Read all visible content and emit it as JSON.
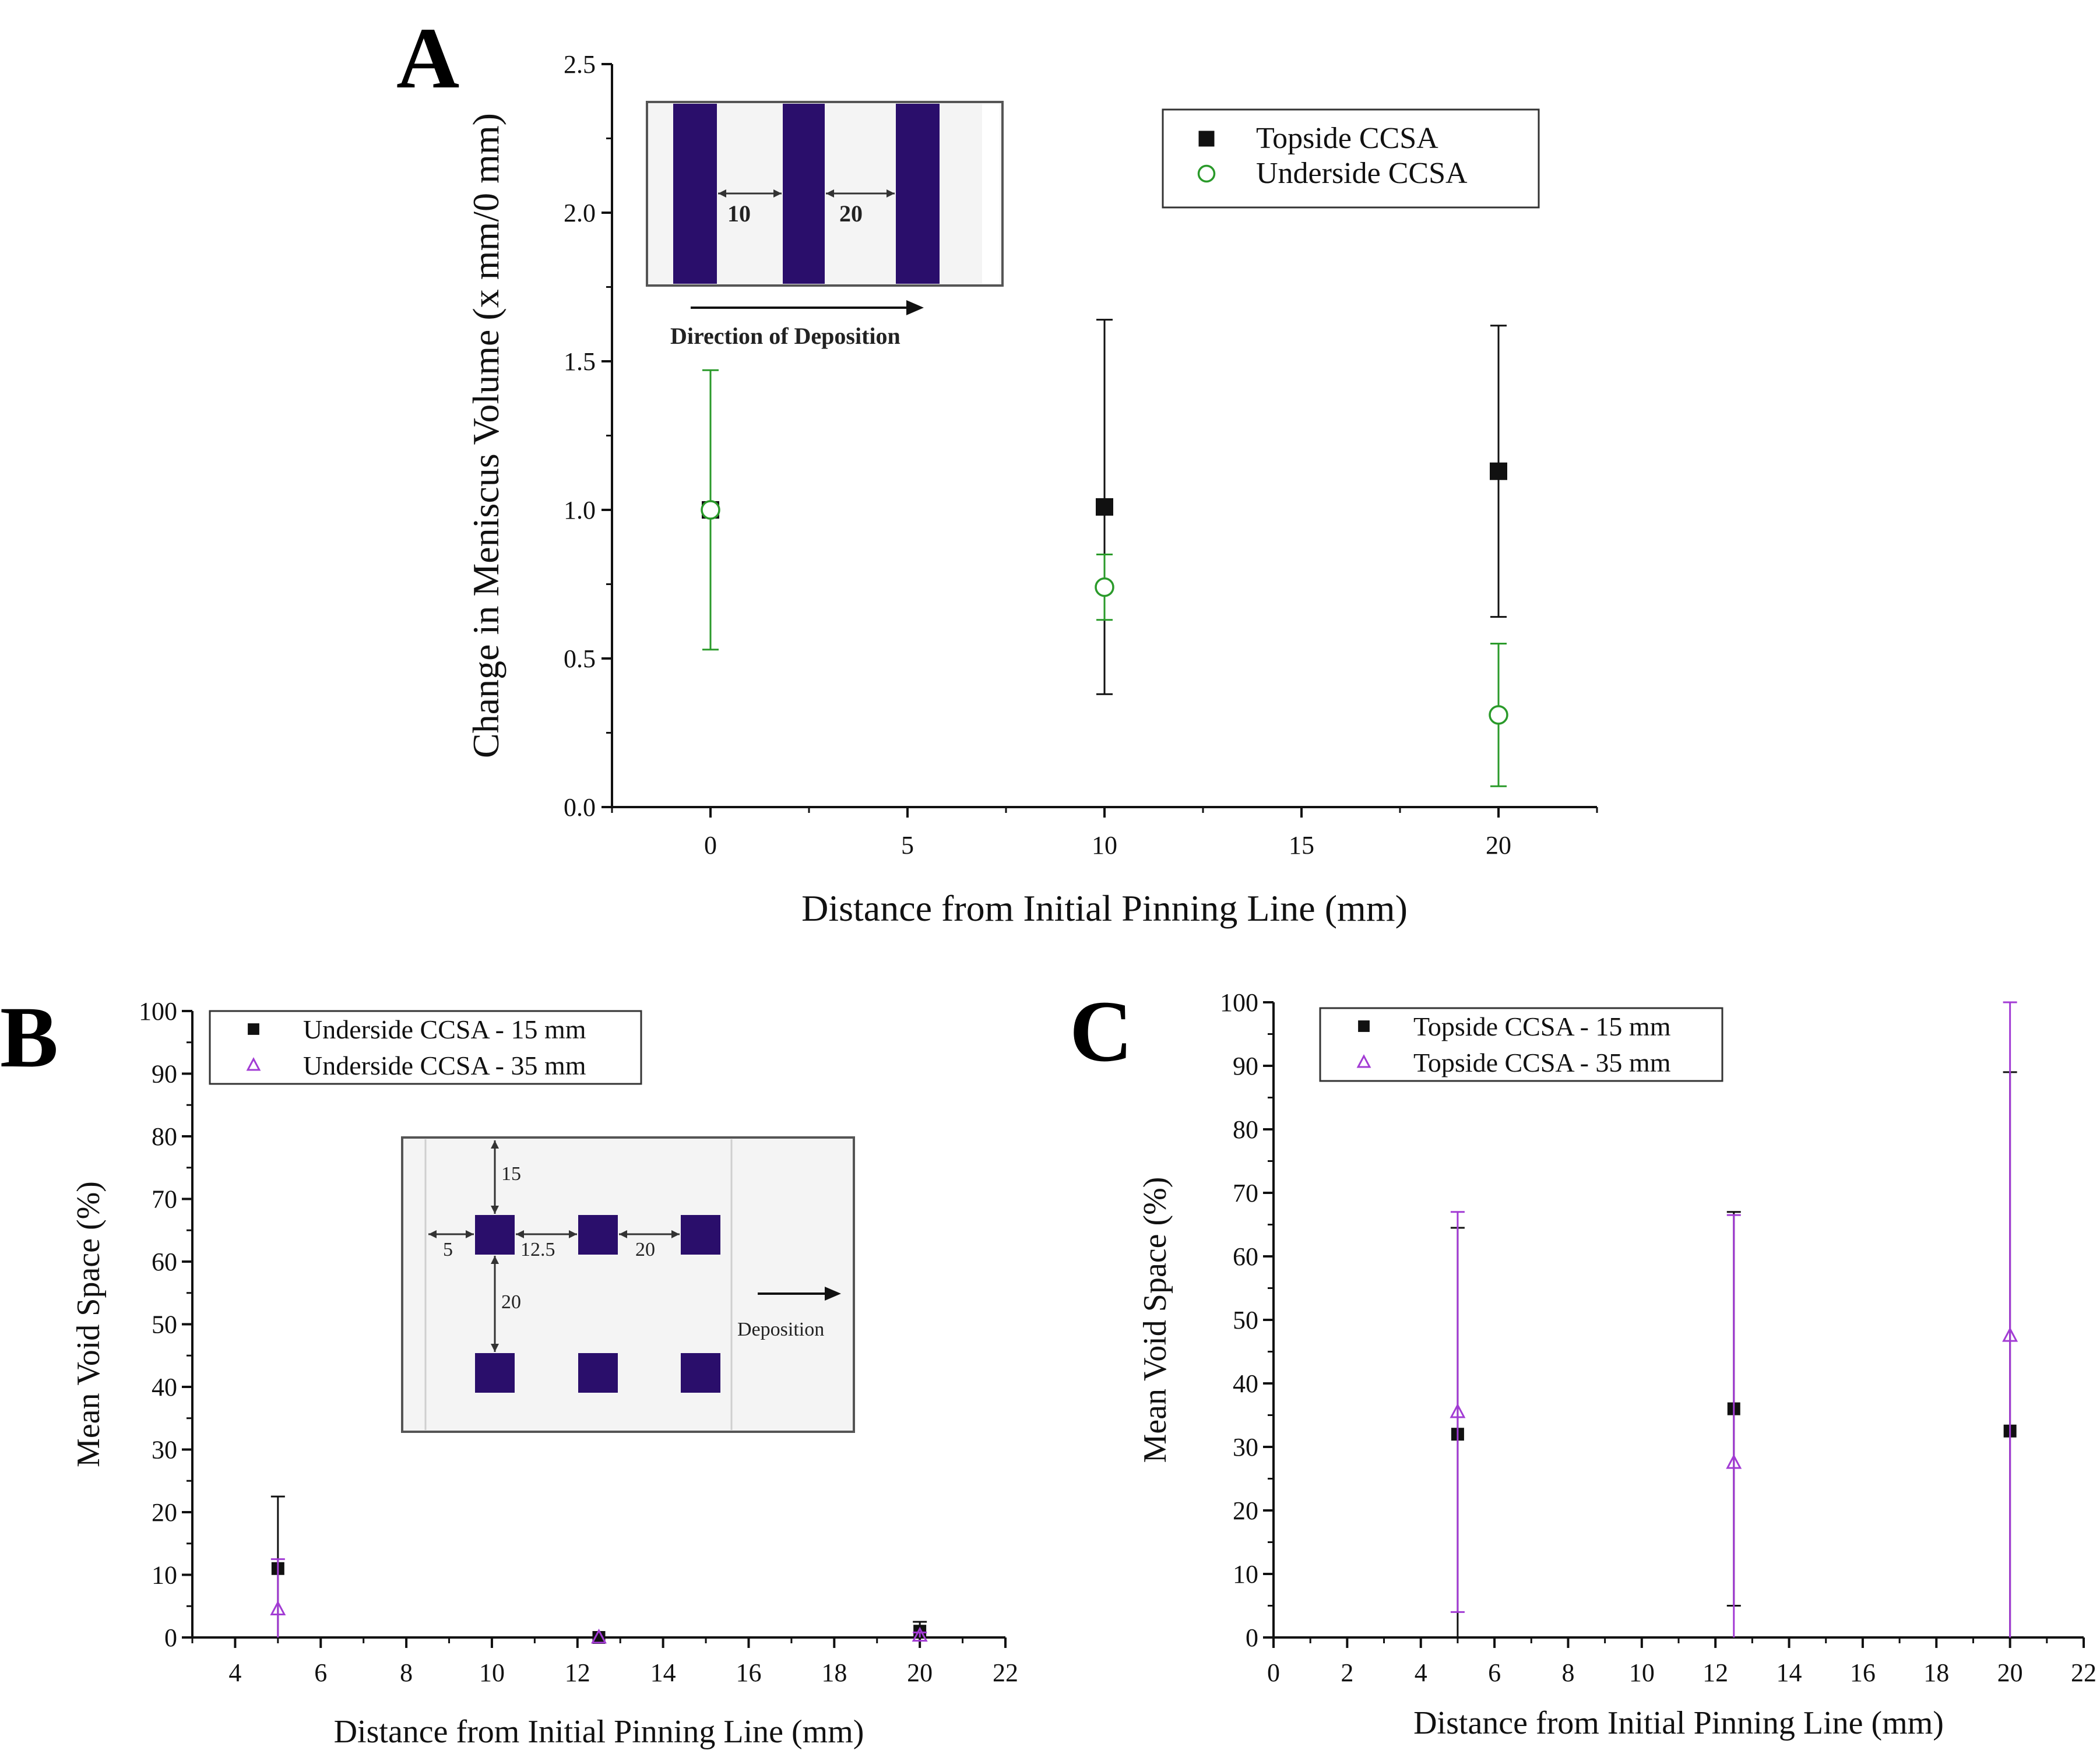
{
  "colors": {
    "black": "#111111",
    "green": "#2a9a2a",
    "purple": "#a23bd4",
    "inset_fill": "#2a0e6b"
  },
  "chart_data": [
    {
      "id": "A",
      "type": "scatter",
      "panel_label": "A",
      "title": "",
      "xlabel": "Distance from Initial Pinning Line (mm)",
      "ylabel": "Change in Meniscus Volume (x mm/0 mm)",
      "xlim": [
        -2.5,
        22.5
      ],
      "ylim": [
        0,
        2.5
      ],
      "xticks": [
        0,
        5,
        10,
        15,
        20
      ],
      "yticks": [
        "0.0",
        "0.5",
        "1.0",
        "1.5",
        "2.0",
        "2.5"
      ],
      "legend_position": "top-right",
      "series": [
        {
          "name": "Topside CCSA",
          "marker": "square",
          "color": "#111111",
          "x": [
            0,
            10,
            20
          ],
          "y": [
            1.0,
            1.01,
            1.13
          ],
          "err": [
            0,
            0.63,
            0.49
          ]
        },
        {
          "name": "Underside CCSA",
          "marker": "circle",
          "color": "#2a9a2a",
          "x": [
            0,
            10,
            20
          ],
          "y": [
            1.0,
            0.74,
            0.31
          ],
          "err": [
            0.47,
            0.11,
            0.24
          ]
        }
      ],
      "inset": {
        "labels": [
          "10",
          "20"
        ],
        "caption": "Direction of Deposition"
      }
    },
    {
      "id": "B",
      "type": "scatter",
      "panel_label": "B",
      "title": "",
      "xlabel": "Distance from Initial Pinning Line (mm)",
      "ylabel": "Mean Void Space (%)",
      "xlim": [
        3,
        22
      ],
      "ylim": [
        0,
        100
      ],
      "xticks": [
        4,
        6,
        8,
        10,
        12,
        14,
        16,
        18,
        20,
        22
      ],
      "yticks": [
        0,
        10,
        20,
        30,
        40,
        50,
        60,
        70,
        80,
        90,
        100
      ],
      "legend_position": "top-left",
      "series": [
        {
          "name": "Underside CCSA - 15 mm",
          "marker": "square",
          "color": "#111111",
          "x": [
            5,
            12.5,
            20
          ],
          "y": [
            11,
            0,
            1
          ],
          "err": [
            11.5,
            0,
            1.5
          ]
        },
        {
          "name": "Underside CCSA - 35 mm",
          "marker": "triangle",
          "color": "#a23bd4",
          "x": [
            5,
            12.5,
            20
          ],
          "y": [
            4.5,
            0,
            0.3
          ],
          "err": [
            8,
            0,
            0.5
          ]
        }
      ],
      "inset": {
        "labels": [
          "15",
          "5",
          "12.5",
          "20",
          "20"
        ],
        "caption": "Deposition"
      }
    },
    {
      "id": "C",
      "type": "scatter",
      "panel_label": "C",
      "title": "",
      "xlabel": "Distance from Initial Pinning Line (mm)",
      "ylabel": "Mean Void Space (%)",
      "xlim": [
        0,
        22
      ],
      "ylim": [
        0,
        100
      ],
      "xticks": [
        0,
        2,
        4,
        6,
        8,
        10,
        12,
        14,
        16,
        18,
        20,
        22
      ],
      "yticks": [
        0,
        10,
        20,
        30,
        40,
        50,
        60,
        70,
        80,
        90,
        100
      ],
      "legend_position": "top-left",
      "series": [
        {
          "name": "Topside CCSA - 15 mm",
          "marker": "square",
          "color": "#111111",
          "x": [
            5,
            12.5,
            20
          ],
          "y": [
            32,
            36,
            32.5
          ],
          "err": [
            32.5,
            31,
            56.5
          ]
        },
        {
          "name": "Topside CCSA - 35 mm",
          "marker": "triangle",
          "color": "#a23bd4",
          "x": [
            5,
            12.5,
            20
          ],
          "y": [
            35.5,
            27.5,
            47.5
          ],
          "err": [
            31.5,
            39,
            52.5
          ]
        }
      ]
    }
  ]
}
